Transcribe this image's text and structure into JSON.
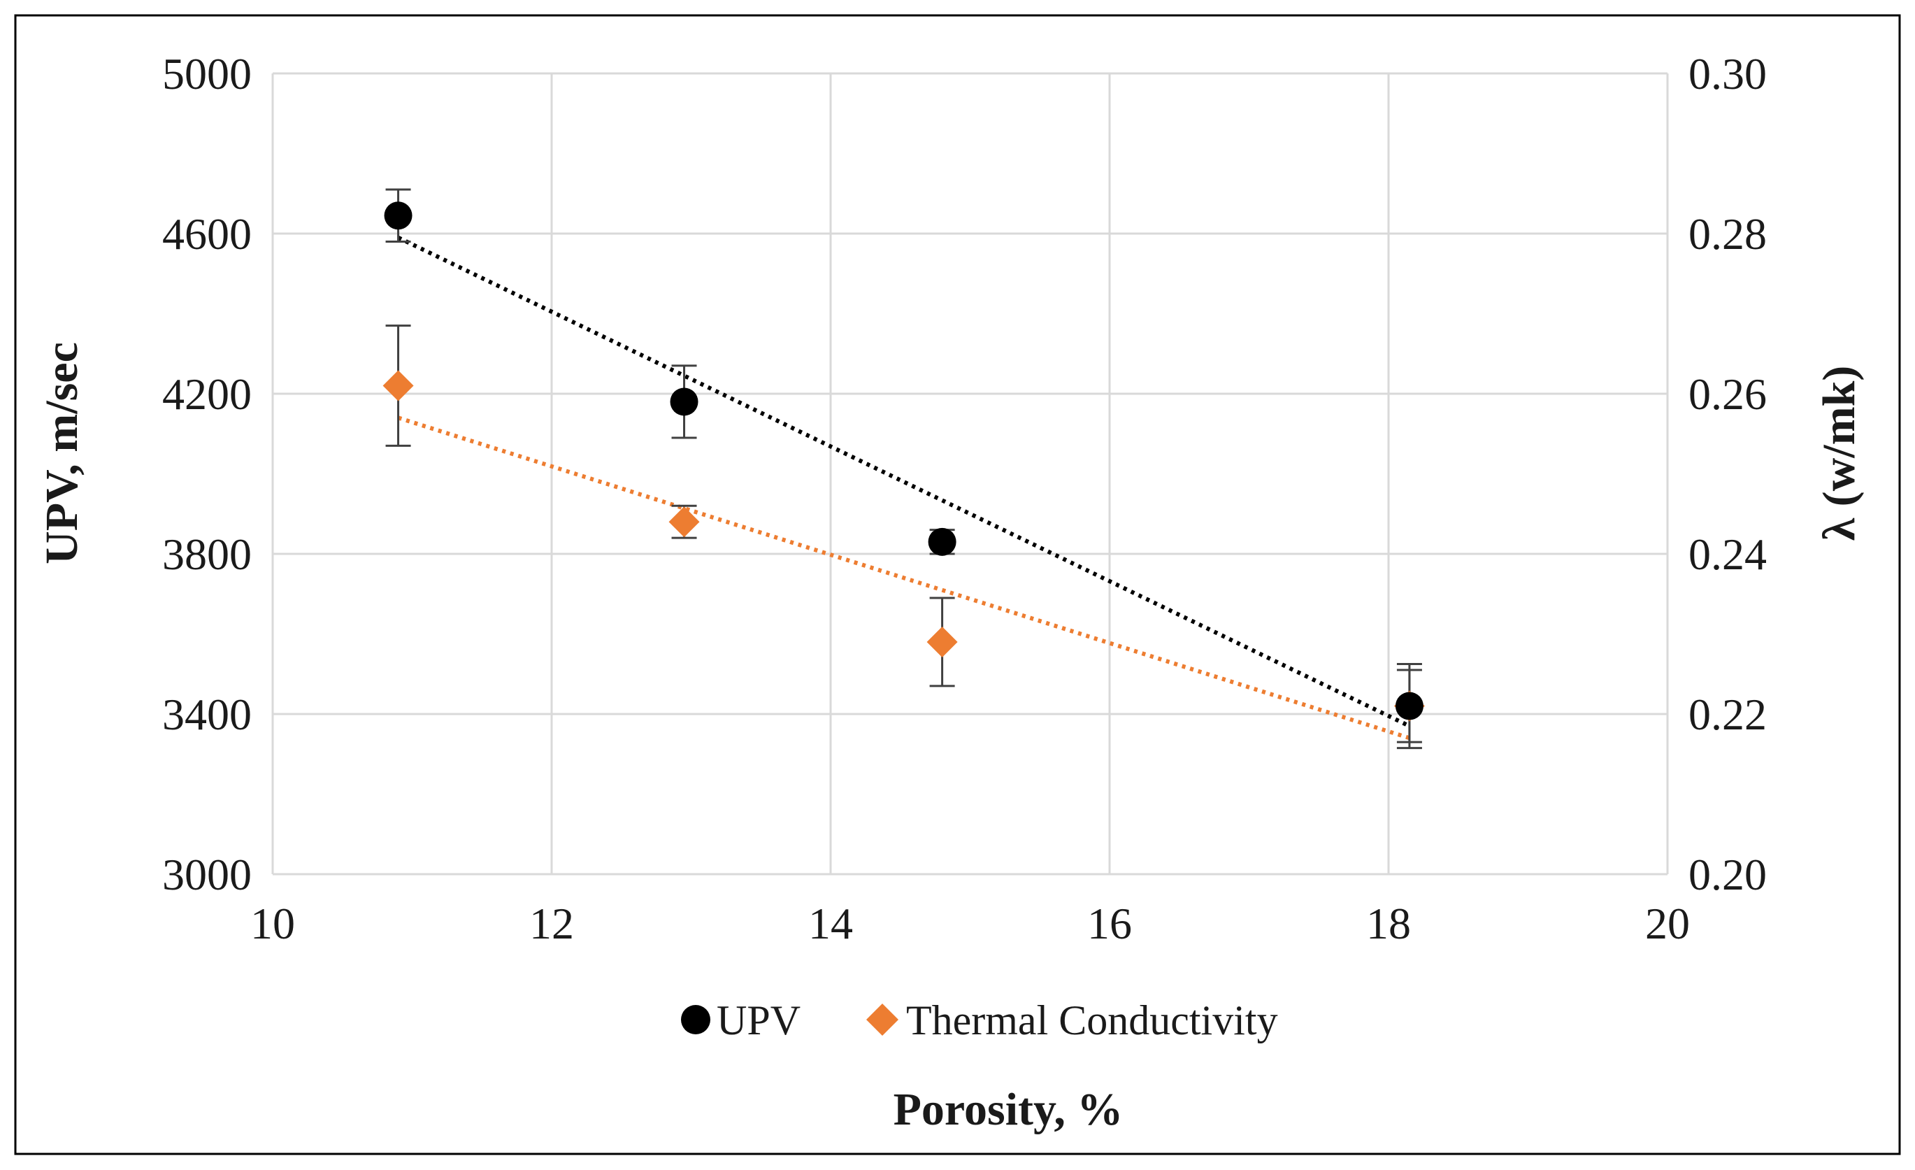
{
  "chart_data": {
    "type": "scatter",
    "xlabel": "Porosity, %",
    "ylabel": "UPV, m/sec",
    "y2label": "λ (w/mk)",
    "xlim": [
      10,
      20
    ],
    "ylim": [
      3000,
      5000
    ],
    "y2lim": [
      0.2,
      0.3
    ],
    "x_ticks": [
      "10",
      "12",
      "14",
      "16",
      "18",
      "20"
    ],
    "y_ticks": [
      "3000",
      "3400",
      "3800",
      "4200",
      "4600",
      "5000"
    ],
    "y2_ticks": [
      "0.20",
      "0.22",
      "0.24",
      "0.26",
      "0.28",
      "0.30"
    ],
    "grid": true,
    "legend_position": "bottom",
    "series": [
      {
        "name": "UPV",
        "axis": "left",
        "marker": "circle",
        "color": "#000000",
        "x": [
          10.9,
          12.95,
          14.8,
          18.15
        ],
        "y": [
          4645,
          4180,
          3830,
          3420
        ],
        "error": [
          65,
          90,
          30,
          105
        ],
        "trendline": {
          "style": "dotted",
          "x": [
            10.9,
            18.15
          ],
          "y": [
            4590,
            3370
          ]
        }
      },
      {
        "name": "Thermal Conductivity",
        "axis": "right",
        "marker": "diamond",
        "color": "#ED7D31",
        "x": [
          10.9,
          12.95,
          14.8,
          18.15
        ],
        "y": [
          0.261,
          0.244,
          0.229,
          0.221
        ],
        "error": [
          0.0075,
          0.002,
          0.0055,
          0.0045
        ],
        "trendline": {
          "style": "dotted",
          "x": [
            10.9,
            18.15
          ],
          "y": [
            0.257,
            0.217
          ]
        }
      }
    ]
  }
}
